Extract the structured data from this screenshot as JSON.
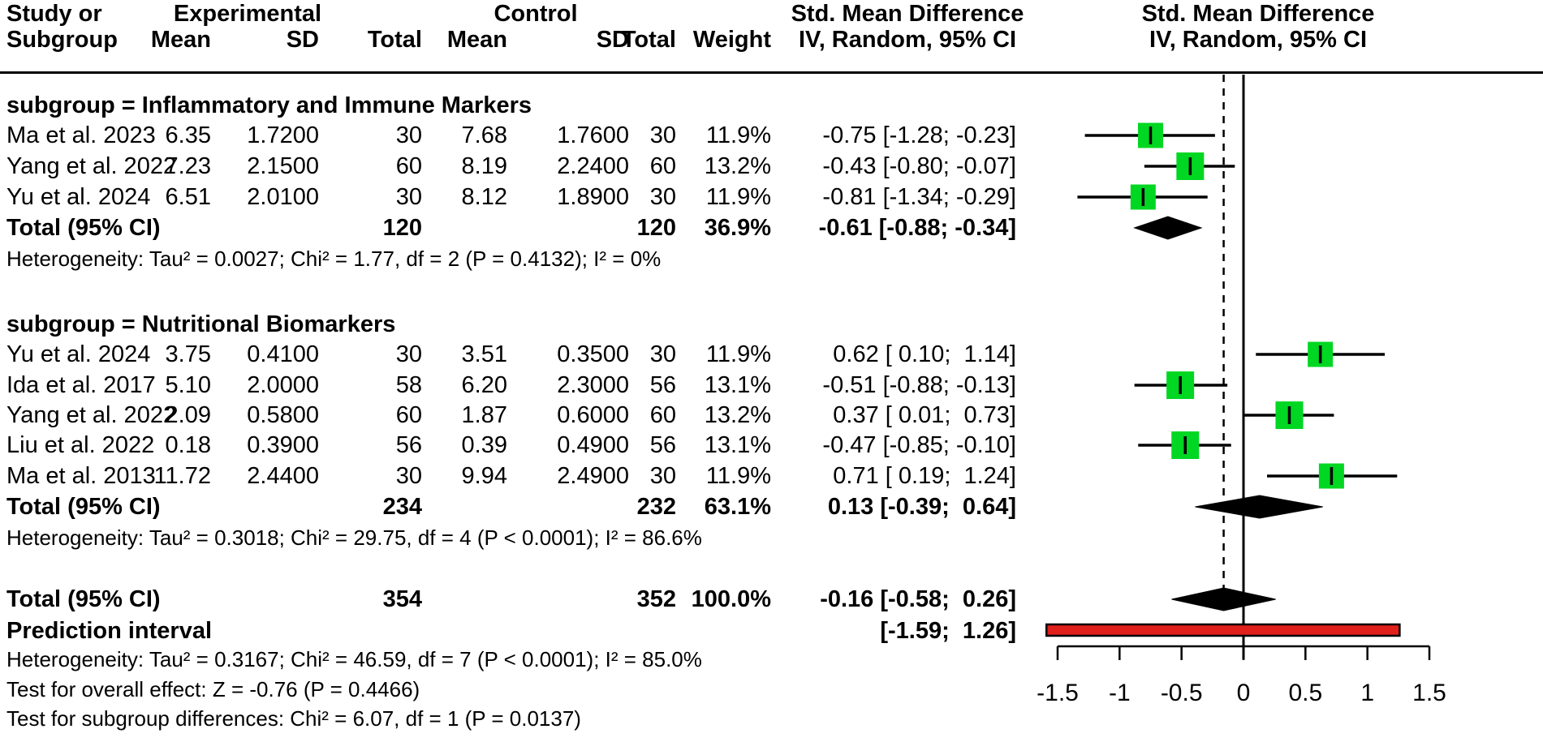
{
  "header": {
    "study_line1": "Study or",
    "study_line2": "Subgroup",
    "experimental": "Experimental",
    "control": "Control",
    "mean": "Mean",
    "sd": "SD",
    "total": "Total",
    "weight": "Weight",
    "smd_line1": "Std. Mean Difference",
    "smd_line2": "IV, Random, 95% CI",
    "plot_line1": "Std. Mean Difference",
    "plot_line2": "IV, Random, 95% CI"
  },
  "groups": [
    {
      "label": "subgroup = Inflammatory and Immune Markers",
      "studies": [
        {
          "study": "Ma et al. 2023",
          "exp_mean": "6.35",
          "exp_sd": "1.7200",
          "exp_total": "30",
          "ctrl_mean": "7.68",
          "ctrl_sd": "1.7600",
          "ctrl_total": "30",
          "weight": "11.9%",
          "smd_ci": "-0.75 [-1.28; -0.23]"
        },
        {
          "study": "Yang et al. 2022",
          "exp_mean": "7.23",
          "exp_sd": "2.1500",
          "exp_total": "60",
          "ctrl_mean": "8.19",
          "ctrl_sd": "2.2400",
          "ctrl_total": "60",
          "weight": "13.2%",
          "smd_ci": "-0.43 [-0.80; -0.07]"
        },
        {
          "study": "Yu et al. 2024",
          "exp_mean": "6.51",
          "exp_sd": "2.0100",
          "exp_total": "30",
          "ctrl_mean": "8.12",
          "ctrl_sd": "1.8900",
          "ctrl_total": "30",
          "weight": "11.9%",
          "smd_ci": "-0.81 [-1.34; -0.29]"
        }
      ],
      "total": {
        "label": "Total (95% CI)",
        "exp_total": "120",
        "ctrl_total": "120",
        "weight": "36.9%",
        "smd_ci": "-0.61 [-0.88; -0.34]"
      },
      "heterogeneity": "Heterogeneity: Tau² = 0.0027; Chi² = 1.77, df = 2 (P = 0.4132); I² = 0%"
    },
    {
      "label": "subgroup = Nutritional Biomarkers",
      "studies": [
        {
          "study": "Yu et al. 2024",
          "exp_mean": "3.75",
          "exp_sd": "0.4100",
          "exp_total": "30",
          "ctrl_mean": "3.51",
          "ctrl_sd": "0.3500",
          "ctrl_total": "30",
          "weight": "11.9%",
          "smd_ci": "0.62 [ 0.10;  1.14]"
        },
        {
          "study": "Ida et al. 2017",
          "exp_mean": "5.10",
          "exp_sd": "2.0000",
          "exp_total": "58",
          "ctrl_mean": "6.20",
          "ctrl_sd": "2.3000",
          "ctrl_total": "56",
          "weight": "13.1%",
          "smd_ci": "-0.51 [-0.88; -0.13]"
        },
        {
          "study": "Yang et al. 2022",
          "exp_mean": "2.09",
          "exp_sd": "0.5800",
          "exp_total": "60",
          "ctrl_mean": "1.87",
          "ctrl_sd": "0.6000",
          "ctrl_total": "60",
          "weight": "13.2%",
          "smd_ci": "0.37 [ 0.01;  0.73]"
        },
        {
          "study": "Liu et al. 2022",
          "exp_mean": "0.18",
          "exp_sd": "0.3900",
          "exp_total": "56",
          "ctrl_mean": "0.39",
          "ctrl_sd": "0.4900",
          "ctrl_total": "56",
          "weight": "13.1%",
          "smd_ci": "-0.47 [-0.85; -0.10]"
        },
        {
          "study": "Ma et al. 2013",
          "exp_mean": "11.72",
          "exp_sd": "2.4400",
          "exp_total": "30",
          "ctrl_mean": "9.94",
          "ctrl_sd": "2.4900",
          "ctrl_total": "30",
          "weight": "11.9%",
          "smd_ci": "0.71 [ 0.19;  1.24]"
        }
      ],
      "total": {
        "label": "Total (95% CI)",
        "exp_total": "234",
        "ctrl_total": "232",
        "weight": "63.1%",
        "smd_ci": "0.13 [-0.39;  0.64]"
      },
      "heterogeneity": "Heterogeneity: Tau² = 0.3018; Chi² = 29.75, df = 4 (P < 0.0001); I² = 86.6%"
    }
  ],
  "overall": {
    "total": {
      "label": "Total (95% CI)",
      "exp_total": "354",
      "ctrl_total": "352",
      "weight": "100.0%",
      "smd_ci": "-0.16 [-0.58;  0.26]"
    },
    "prediction": {
      "label": "Prediction interval",
      "ci": "[-1.59;  1.26]"
    },
    "heterogeneity": "Heterogeneity: Tau² = 0.3167; Chi² = 46.59, df = 7 (P < 0.0001); I² = 85.0%",
    "test_overall": "Test for overall effect: Z = -0.76 (P = 0.4466)",
    "test_subgroup": "Test for subgroup differences: Chi² = 6.07, df = 1 (P = 0.0137)"
  },
  "chart_data": {
    "type": "forest",
    "x_axis": {
      "ticks": [
        -1.5,
        -1,
        -0.5,
        0,
        0.5,
        1,
        1.5
      ],
      "range": [
        -1.6,
        1.55
      ]
    },
    "zero_line": 0,
    "overall_effect_line": -0.16,
    "colors": {
      "square": "#00D722",
      "diamond": "#000000",
      "prediction_fill": "#E1201C",
      "prediction_border": "#000000",
      "line": "#000000"
    },
    "studies": [
      {
        "name": "Ma et al. 2023",
        "group": "Inflammatory and Immune Markers",
        "smd": -0.75,
        "ci_low": -1.28,
        "ci_high": -0.23,
        "weight_pct": 11.9
      },
      {
        "name": "Yang et al. 2022",
        "group": "Inflammatory and Immune Markers",
        "smd": -0.43,
        "ci_low": -0.8,
        "ci_high": -0.07,
        "weight_pct": 13.2
      },
      {
        "name": "Yu et al. 2024",
        "group": "Inflammatory and Immune Markers",
        "smd": -0.81,
        "ci_low": -1.34,
        "ci_high": -0.29,
        "weight_pct": 11.9
      },
      {
        "name": "Yu et al. 2024",
        "group": "Nutritional Biomarkers",
        "smd": 0.62,
        "ci_low": 0.1,
        "ci_high": 1.14,
        "weight_pct": 11.9
      },
      {
        "name": "Ida et al. 2017",
        "group": "Nutritional Biomarkers",
        "smd": -0.51,
        "ci_low": -0.88,
        "ci_high": -0.13,
        "weight_pct": 13.1
      },
      {
        "name": "Yang et al. 2022",
        "group": "Nutritional Biomarkers",
        "smd": 0.37,
        "ci_low": 0.01,
        "ci_high": 0.73,
        "weight_pct": 13.2
      },
      {
        "name": "Liu et al. 2022",
        "group": "Nutritional Biomarkers",
        "smd": -0.47,
        "ci_low": -0.85,
        "ci_high": -0.1,
        "weight_pct": 13.1
      },
      {
        "name": "Ma et al. 2013",
        "group": "Nutritional Biomarkers",
        "smd": 0.71,
        "ci_low": 0.19,
        "ci_high": 1.24,
        "weight_pct": 11.9
      }
    ],
    "diamonds": [
      {
        "label": "Inflammatory and Immune Markers subtotal",
        "center": -0.61,
        "ci_low": -0.88,
        "ci_high": -0.34
      },
      {
        "label": "Nutritional Biomarkers subtotal",
        "center": 0.13,
        "ci_low": -0.39,
        "ci_high": 0.64
      },
      {
        "label": "Overall total",
        "center": -0.16,
        "ci_low": -0.58,
        "ci_high": 0.26
      }
    ],
    "prediction_interval": {
      "ci_low": -1.59,
      "ci_high": 1.26
    }
  }
}
